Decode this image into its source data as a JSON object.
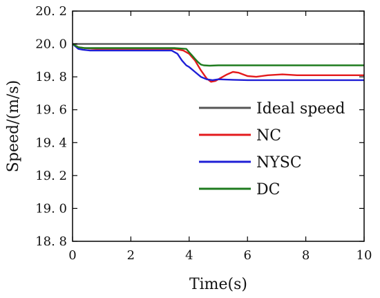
{
  "chart_data": {
    "type": "line",
    "xlabel": "Time(s)",
    "ylabel": "Speed/(m/s)",
    "xlim": [
      0,
      10
    ],
    "ylim": [
      18.8,
      20.2
    ],
    "x_ticks": [
      0,
      2,
      4,
      6,
      8,
      10
    ],
    "x_tick_labels": [
      "0",
      "2",
      "4",
      "6",
      "8",
      "10"
    ],
    "y_ticks": [
      18.8,
      19.0,
      19.2,
      19.4,
      19.6,
      19.8,
      20.0,
      20.2
    ],
    "y_tick_labels": [
      "18. 8",
      "19. 0",
      "19. 2",
      "19. 4",
      "19. 6",
      "19. 8",
      "20. 0",
      "20. 2"
    ],
    "grid": false,
    "legend_position": "right",
    "series": [
      {
        "name": "Ideal speed",
        "color": "#555555",
        "x": [
          0,
          10
        ],
        "y": [
          20.0,
          20.0
        ]
      },
      {
        "name": "NC",
        "color": "#e31a1c",
        "x": [
          0,
          0.1,
          0.2,
          0.4,
          0.8,
          1.5,
          2.5,
          3.5,
          3.8,
          4.0,
          4.2,
          4.4,
          4.6,
          4.75,
          4.9,
          5.1,
          5.3,
          5.5,
          5.7,
          6.0,
          6.3,
          6.7,
          7.2,
          7.7,
          8.2,
          9.0,
          10.0
        ],
        "y": [
          20.0,
          19.99,
          19.98,
          19.975,
          19.97,
          19.97,
          19.97,
          19.97,
          19.96,
          19.94,
          19.9,
          19.84,
          19.79,
          19.77,
          19.775,
          19.795,
          19.815,
          19.83,
          19.825,
          19.805,
          19.8,
          19.81,
          19.815,
          19.81,
          19.81,
          19.81,
          19.81
        ]
      },
      {
        "name": "NYSC",
        "color": "#1f1fd6",
        "x": [
          0,
          0.1,
          0.2,
          0.35,
          0.6,
          1.0,
          2.0,
          3.0,
          3.4,
          3.6,
          3.75,
          3.9,
          4.0,
          4.2,
          4.4,
          4.6,
          4.8,
          5.0,
          5.5,
          6.0,
          7.0,
          8.0,
          9.0,
          10.0
        ],
        "y": [
          20.0,
          19.985,
          19.97,
          19.965,
          19.96,
          19.96,
          19.96,
          19.96,
          19.96,
          19.94,
          19.9,
          19.87,
          19.86,
          19.83,
          19.8,
          19.785,
          19.78,
          19.785,
          19.782,
          19.78,
          19.78,
          19.78,
          19.78,
          19.78
        ]
      },
      {
        "name": "DC",
        "color": "#1e7b1e",
        "x": [
          0,
          0.1,
          0.2,
          0.4,
          0.8,
          1.5,
          2.5,
          3.5,
          3.9,
          4.0,
          4.1,
          4.2,
          4.3,
          4.4,
          4.5,
          4.7,
          5.0,
          5.5,
          6.0,
          7.0,
          8.0,
          9.0,
          10.0
        ],
        "y": [
          20.0,
          19.99,
          19.98,
          19.975,
          19.975,
          19.975,
          19.975,
          19.975,
          19.97,
          19.95,
          19.93,
          19.91,
          19.89,
          19.875,
          19.87,
          19.868,
          19.87,
          19.87,
          19.87,
          19.87,
          19.87,
          19.87,
          19.87
        ]
      }
    ]
  }
}
